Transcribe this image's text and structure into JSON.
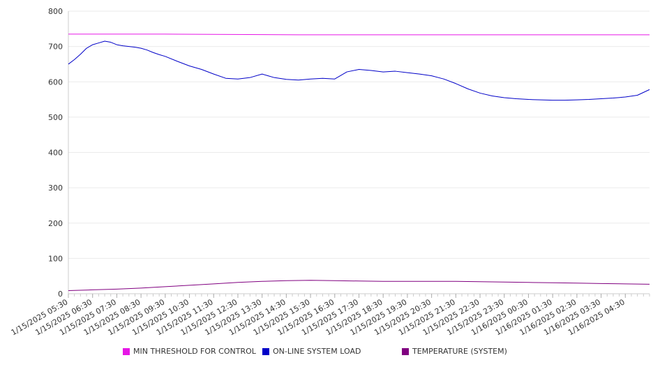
{
  "chart_data": {
    "type": "line",
    "title": "",
    "xlabel": "",
    "ylabel": "",
    "ylim": [
      0,
      800
    ],
    "yticks": [
      0,
      100,
      200,
      300,
      400,
      500,
      600,
      700,
      800
    ],
    "grid": true,
    "legend_position": "bottom",
    "x_tick_labels": [
      "1/15/2025 05:30",
      "1/15/2025 06:30",
      "1/15/2025 07:30",
      "1/15/2025 08:30",
      "1/15/2025 09:30",
      "1/15/2025 10:30",
      "1/15/2025 11:30",
      "1/15/2025 12:30",
      "1/15/2025 13:30",
      "1/15/2025 14:30",
      "1/15/2025 15:30",
      "1/15/2025 16:30",
      "1/15/2025 17:30",
      "1/15/2025 18:30",
      "1/15/2025 19:30",
      "1/15/2025 20:30",
      "1/15/2025 21:30",
      "1/15/2025 22:30",
      "1/15/2025 23:30",
      "1/16/2025 00:30",
      "1/16/2025 01:30",
      "1/16/2025 02:30",
      "1/16/2025 03:30",
      "1/16/2025 04:30"
    ],
    "x_range": [
      "1/15/2025 05:30",
      "1/16/2025 05:30"
    ],
    "series": [
      {
        "name": "MIN THRESHOLD FOR CONTROL",
        "color": "#e617e6",
        "x": [
          0,
          4,
          9.5,
          24
        ],
        "values": [
          735,
          735,
          733,
          733
        ]
      },
      {
        "name": "ON-LINE SYSTEM LOAD",
        "color": "#0000c8",
        "x": [
          0,
          0.25,
          0.5,
          0.75,
          1,
          1.25,
          1.5,
          1.75,
          2,
          2.25,
          2.5,
          2.75,
          3,
          3.25,
          3.5,
          3.75,
          4,
          4.5,
          5,
          5.5,
          6,
          6.5,
          7,
          7.5,
          8,
          8.5,
          9,
          9.5,
          10,
          10.5,
          11,
          11.5,
          12,
          12.5,
          13,
          13.5,
          14,
          14.5,
          15,
          15.5,
          16,
          16.5,
          17,
          17.5,
          18,
          18.5,
          19,
          19.5,
          20,
          20.5,
          21,
          21.5,
          22,
          22.5,
          23,
          23.5,
          24
        ],
        "values": [
          650,
          663,
          678,
          695,
          705,
          710,
          715,
          712,
          705,
          702,
          700,
          698,
          695,
          690,
          683,
          677,
          672,
          658,
          645,
          635,
          622,
          610,
          608,
          612,
          622,
          612,
          607,
          605,
          608,
          610,
          608,
          628,
          635,
          632,
          628,
          630,
          626,
          622,
          617,
          608,
          595,
          580,
          568,
          560,
          555,
          552,
          550,
          549,
          548,
          548,
          549,
          550,
          552,
          554,
          557,
          562,
          578
        ]
      },
      {
        "name": "TEMPERATURE (SYSTEM)",
        "color": "#800080",
        "x": [
          0,
          1,
          2,
          3,
          4,
          5,
          6,
          7,
          8,
          9,
          10,
          11,
          12,
          13,
          14,
          15,
          16,
          17,
          18,
          19,
          20,
          21,
          22,
          23,
          24
        ],
        "values": [
          9,
          11,
          13,
          16,
          20,
          24,
          28,
          32,
          35,
          37,
          38,
          37,
          36,
          35,
          35,
          35,
          35,
          34,
          33,
          32,
          31,
          30,
          29,
          28,
          27
        ]
      }
    ]
  }
}
